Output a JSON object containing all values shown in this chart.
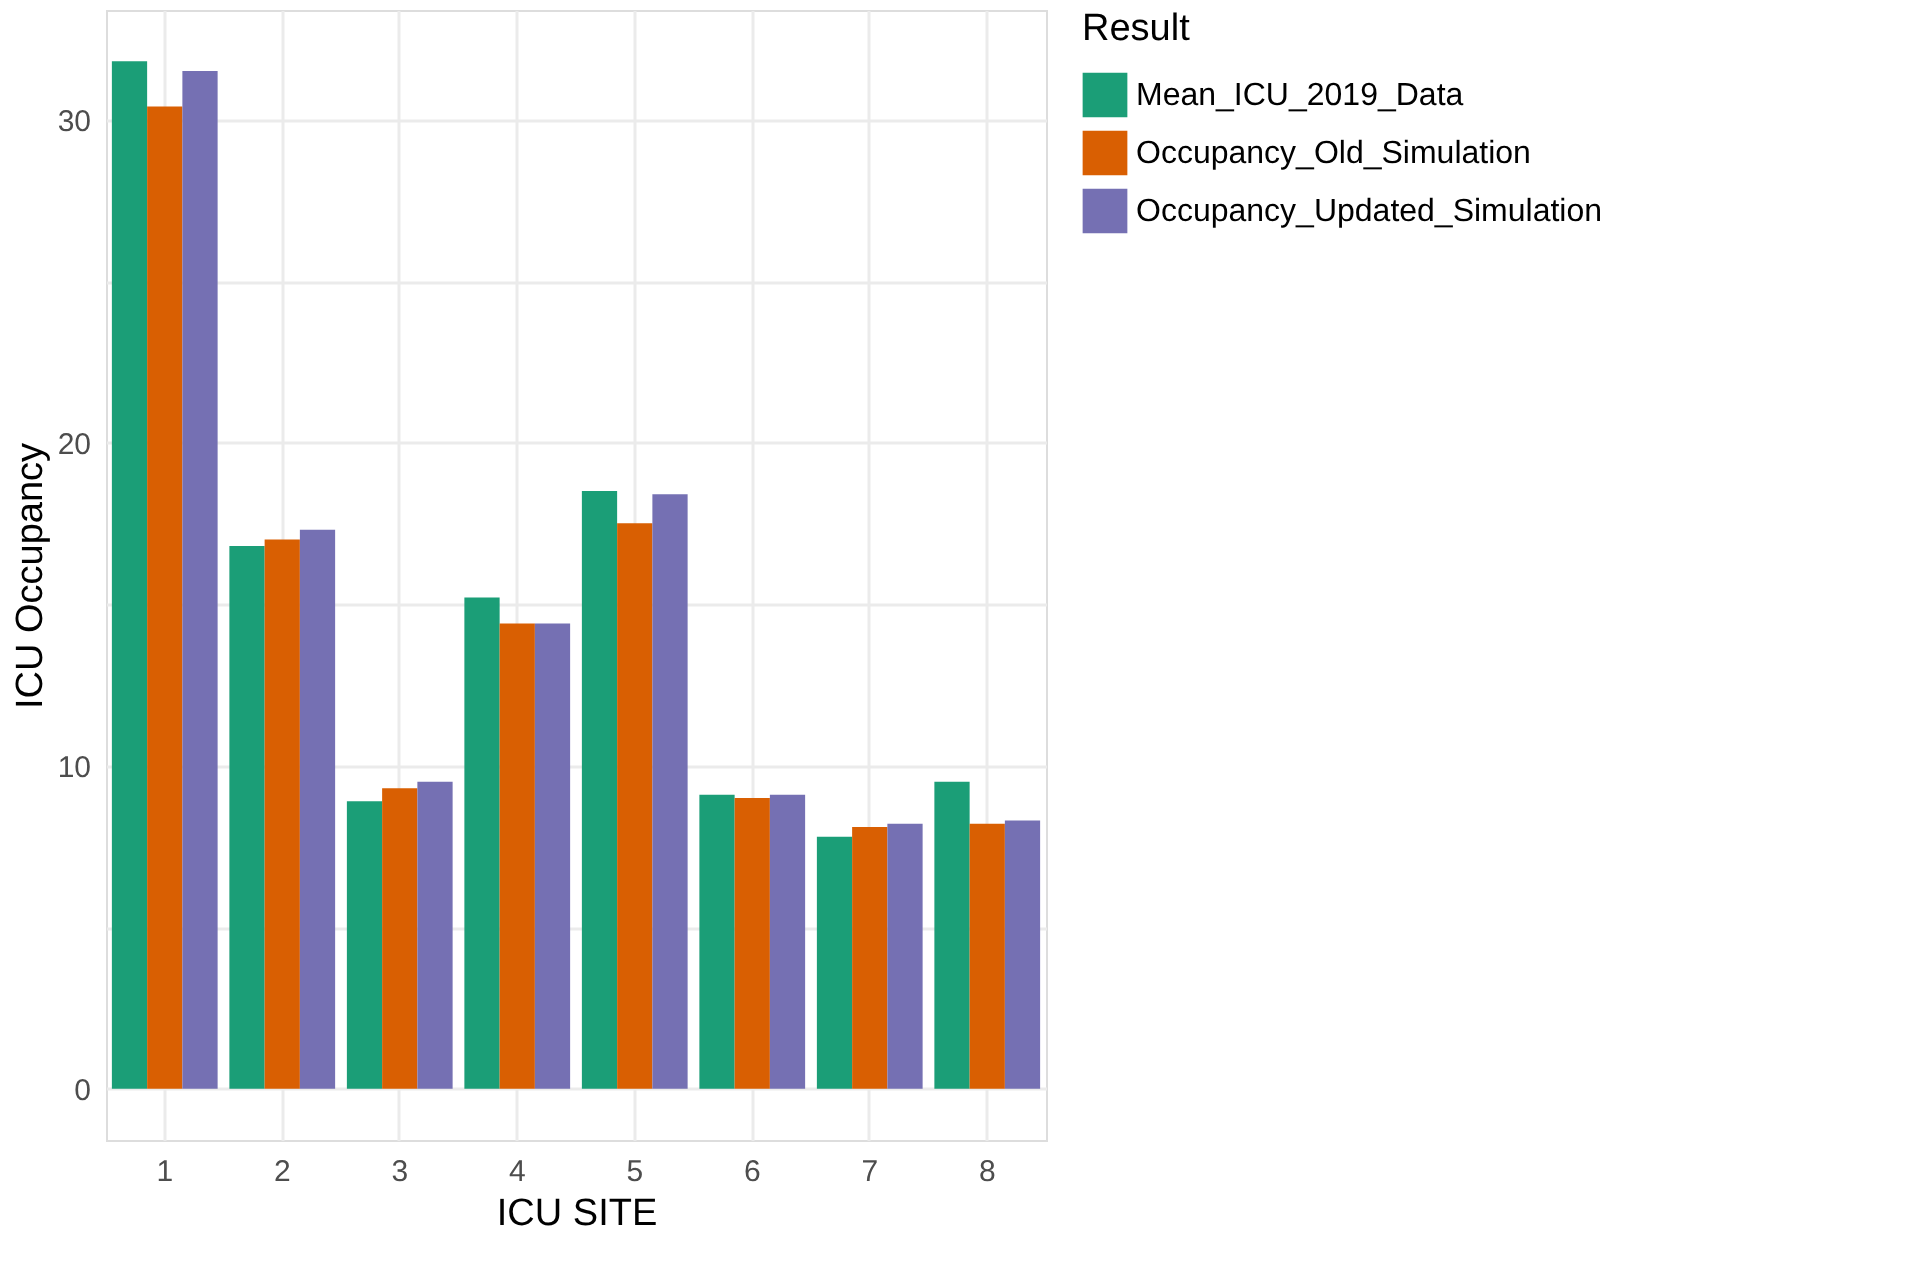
{
  "chart_data": {
    "type": "bar",
    "xlabel": "ICU SITE",
    "ylabel": "ICU Occupancy",
    "legend_title": "Result",
    "legend": "right",
    "grid": true,
    "categories": [
      "1",
      "2",
      "3",
      "4",
      "5",
      "6",
      "7",
      "8"
    ],
    "series": [
      {
        "name": "Mean_ICU_2019_Data",
        "color": "#1b9e77",
        "values": [
          31.8,
          16.8,
          8.9,
          15.2,
          18.5,
          9.1,
          7.8,
          9.5
        ]
      },
      {
        "name": "Occupancy_Old_Simulation",
        "color": "#d95f02",
        "values": [
          30.4,
          17.0,
          9.3,
          14.4,
          17.5,
          9.0,
          8.1,
          8.2
        ]
      },
      {
        "name": "Occupancy_Updated_Simulation",
        "color": "#7570b3",
        "values": [
          31.5,
          17.3,
          9.5,
          14.4,
          18.4,
          9.1,
          8.2,
          8.3
        ]
      }
    ],
    "ylim": [
      -1.59,
      33.39
    ],
    "yticks": [
      0,
      {
        "value": 5,
        "label": null
      },
      10,
      {
        "value": 15,
        "label": null
      },
      20,
      {
        "value": 25,
        "label": null
      },
      30
    ]
  }
}
